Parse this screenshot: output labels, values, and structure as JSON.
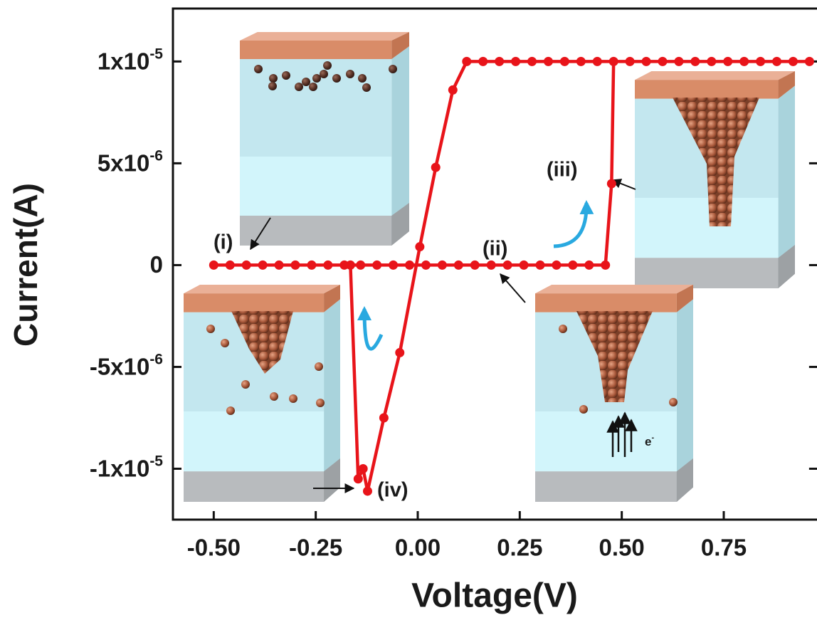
{
  "chart_data": {
    "type": "line",
    "x_label": "Voltage(V)",
    "y_label": "Current(A)",
    "x": [
      -0.5,
      -0.46,
      -0.42,
      -0.38,
      -0.34,
      -0.3,
      -0.26,
      -0.22,
      -0.18,
      -0.14,
      -0.1,
      -0.06,
      -0.02,
      0.02,
      0.06,
      0.1,
      0.14,
      0.18,
      0.22,
      0.26,
      0.3,
      0.34,
      0.38,
      0.42,
      0.46,
      0.475,
      0.48,
      0.52,
      0.56,
      0.6,
      0.64,
      0.68,
      0.72,
      0.76,
      0.8,
      0.84,
      0.88,
      0.92,
      0.96,
      0.44,
      0.4,
      0.36,
      0.32,
      0.28,
      0.24,
      0.2,
      0.16,
      0.12,
      0.086,
      0.044,
      0.005,
      -0.044,
      -0.083,
      -0.123,
      -0.134,
      -0.146,
      -0.165
    ],
    "series": [
      {
        "color": "#e8141a",
        "values": [
          0,
          0,
          0,
          0,
          0,
          0,
          0,
          0,
          0,
          0,
          0,
          0,
          0,
          0,
          0,
          0,
          0,
          0,
          0,
          0,
          0,
          0,
          0,
          0,
          0,
          4e-06,
          1e-05,
          1e-05,
          1e-05,
          1e-05,
          1e-05,
          1e-05,
          1e-05,
          1e-05,
          1e-05,
          1e-05,
          1e-05,
          1e-05,
          1e-05,
          1e-05,
          1e-05,
          1e-05,
          1e-05,
          1e-05,
          1e-05,
          1e-05,
          1e-05,
          1e-05,
          8.6e-06,
          4.8e-06,
          9e-07,
          -4.3e-06,
          -7.5e-06,
          -1.11e-05,
          -1e-05,
          -1.05e-05,
          0
        ]
      }
    ],
    "xlim": [
      -0.6,
      0.98
    ],
    "ylim": [
      -1.25e-05,
      1.26e-05
    ],
    "xticks": [
      {
        "value": -0.5,
        "label": "-0.50"
      },
      {
        "value": -0.25,
        "label": "-0.25"
      },
      {
        "value": 0,
        "label": "0.00"
      },
      {
        "value": 0.25,
        "label": "0.25"
      },
      {
        "value": 0.5,
        "label": "0.50"
      },
      {
        "value": 0.75,
        "label": "0.75"
      }
    ],
    "yticks": [
      {
        "value": 1e-05,
        "label": "1x10",
        "sup": "-5"
      },
      {
        "value": 5e-06,
        "label": "5x10",
        "sup": "-6"
      },
      0,
      {
        "value": -5e-06,
        "label": "-5x10",
        "sup": "-6"
      },
      {
        "value": -1e-05,
        "label": "-1x10",
        "sup": "-5"
      }
    ],
    "annotations": [
      "(i)",
      "(ii)",
      "(iii)",
      "(iv)"
    ],
    "electron_label": "e",
    "electron_charge": "-"
  }
}
